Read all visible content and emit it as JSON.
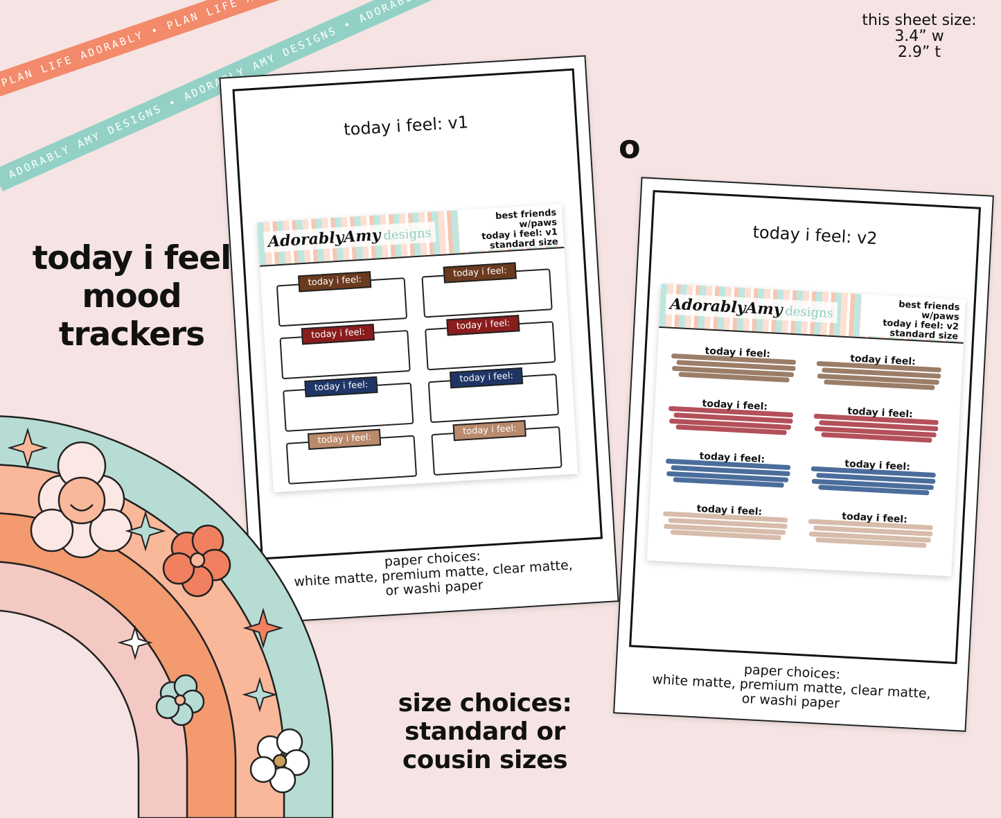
{
  "ribbons": {
    "orange_text": "PLAN LIFE ADORABLY • PLAN LIFE ADORABLY • PLAN LIFE ADORABLY",
    "teal_text": "ADORABLY AMY DESIGNS • ADORABLY AMY DESIGNS • ADORABLY AMY DESIGNS"
  },
  "size_info": {
    "line1": "this sheet size:",
    "line2": "3.4” w",
    "line3": "2.9” t"
  },
  "headline": {
    "line1": "today i feel",
    "line2": "mood",
    "line3": "trackers"
  },
  "or_mark": "o",
  "size_choices": {
    "line1": "size choices:",
    "line2": "standard or",
    "line3": "cousin sizes"
  },
  "card_v1": {
    "title": "today i feel: v1",
    "paper_line1": "paper choices:",
    "paper_line2": "white matte, premium matte, clear matte,",
    "paper_line3": "or washi paper",
    "logo": "AdorablyAmy",
    "logo_designs": "designs",
    "meta_line1": "best friends w/paws",
    "meta_line2": "today i feel: v1",
    "meta_line3": "standard size",
    "tag_label": "today i feel:",
    "tag_colors": [
      "#6b3a1f",
      "#6b3a1f",
      "#8a1c1c",
      "#8a1c1c",
      "#1e3566",
      "#1e3566",
      "#b98a6b",
      "#b98a6b"
    ]
  },
  "card_v2": {
    "title": "today i feel: v2",
    "paper_line1": "paper choices:",
    "paper_line2": "white matte, premium matte, clear matte,",
    "paper_line3": "or washi paper",
    "logo": "AdorablyAmy",
    "logo_designs": "designs",
    "meta_line1": "best friends w/paws",
    "meta_line2": "today i feel: v2",
    "meta_line3": "standard size",
    "swatch_label": "today i feel:",
    "swatch_colors": [
      "#9b7d68",
      "#9b7d68",
      "#b3505a",
      "#b3505a",
      "#4a6d9c",
      "#4a6d9c",
      "#d7bcab",
      "#d7bcab"
    ]
  }
}
